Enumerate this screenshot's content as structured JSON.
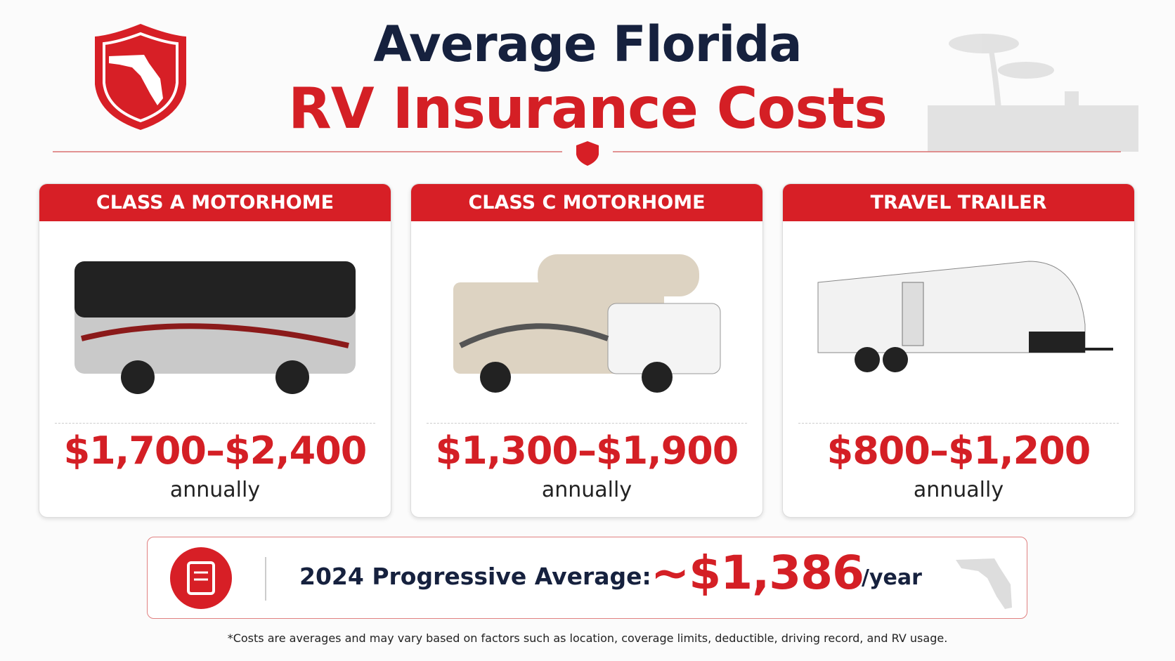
{
  "header": {
    "title_line1": "Average Florida",
    "title_line2": "RV Insurance Costs"
  },
  "cards": [
    {
      "label": "CLASS A MOTORHOME",
      "price": "$1,700–$2,400",
      "period": "annually"
    },
    {
      "label": "CLASS C MOTORHOME",
      "price": "$1,300–$1,900",
      "period": "annually"
    },
    {
      "label": "TRAVEL TRAILER",
      "price": "$800–$1,200",
      "period": "annually"
    }
  ],
  "summary": {
    "label": "2024 Progressive Average:",
    "value": "~$1,386",
    "unit": "/year"
  },
  "footnote": "*Costs are averages and may vary based on factors such as location, coverage limits, deductible, driving record, and RV usage."
}
